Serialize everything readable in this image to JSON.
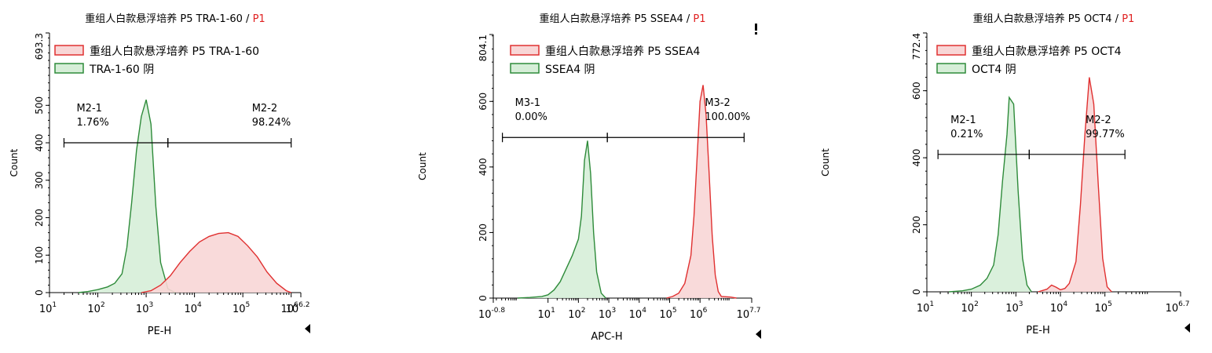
{
  "colors": {
    "sample_line": "#e03030",
    "sample_fill": "#f8d6d6",
    "neg_line": "#2e8b3a",
    "neg_fill": "#d6eed8",
    "p1_text": "#e02020",
    "axis": "#000000"
  },
  "chart_data": [
    {
      "type": "area",
      "title": "重组人白款悬浮培养 P5 TRA-1-60 / P1",
      "title_main": "重组人白款悬浮培养 P5 TRA-1-60 /",
      "title_gate": "P1",
      "xlabel": "PE-H",
      "ylabel": "Count",
      "xscale": "log",
      "xlim": [
        1,
        6.2
      ],
      "ylim": [
        0,
        693.3
      ],
      "xticks": [
        {
          "v": 1,
          "label": "10"
        },
        {
          "v": 2,
          "label": "10"
        },
        {
          "v": 3,
          "label": "10"
        },
        {
          "v": 4,
          "label": "10"
        },
        {
          "v": 5,
          "label": "10"
        },
        {
          "v": 6,
          "label": "10"
        }
      ],
      "xtick_exps": [
        "1",
        "2",
        "3",
        "4",
        "5",
        "6",
        "6.2"
      ],
      "xmax_label": "10",
      "yticks": [
        0,
        100,
        200,
        300,
        400,
        500
      ],
      "ymax_label": "693.3",
      "legend": [
        "重组人白款悬浮培养 P5  TRA-1-60",
        "TRA-1-60 阴"
      ],
      "legend_placement": "top",
      "gates": [
        {
          "name": "M2-1",
          "pct": "1.76%",
          "x_start": 1.3,
          "x_end": 3.45,
          "y": 400
        },
        {
          "name": "M2-2",
          "pct": "98.24%",
          "x_start": 3.45,
          "x_end": 6.0,
          "y": 400
        }
      ],
      "series": [
        {
          "name": "重组人白款悬浮培养 P5  TRA-1-60",
          "role": "sample",
          "x": [
            2.9,
            3.1,
            3.3,
            3.5,
            3.7,
            3.9,
            4.1,
            4.3,
            4.5,
            4.7,
            4.9,
            5.1,
            5.3,
            5.5,
            5.7,
            5.9,
            6.0
          ],
          "y": [
            0,
            5,
            20,
            45,
            80,
            110,
            135,
            150,
            158,
            160,
            150,
            125,
            95,
            55,
            25,
            5,
            0
          ]
        },
        {
          "name": "TRA-1-60 阴",
          "role": "negative",
          "x": [
            1.6,
            1.8,
            2.0,
            2.2,
            2.35,
            2.5,
            2.6,
            2.7,
            2.8,
            2.9,
            3.0,
            3.1,
            3.2,
            3.3,
            3.45,
            3.6
          ],
          "y": [
            0,
            3,
            8,
            15,
            25,
            50,
            120,
            240,
            380,
            470,
            515,
            450,
            230,
            80,
            10,
            0
          ]
        }
      ]
    },
    {
      "type": "area",
      "title": "重组人白款悬浮培养 P5 SSEA4 / P1",
      "title_main": "重组人白款悬浮培养 P5 SSEA4 /",
      "title_gate": "P1",
      "xlabel": "APC-H",
      "ylabel": "Count",
      "xscale": "log",
      "xlim": [
        -0.8,
        7.7
      ],
      "ylim": [
        0,
        804.1
      ],
      "xticks": [
        {
          "v": -0.8,
          "label": "10"
        },
        {
          "v": 1,
          "label": "10"
        },
        {
          "v": 2,
          "label": "10"
        },
        {
          "v": 3,
          "label": "10"
        },
        {
          "v": 4,
          "label": "10"
        },
        {
          "v": 5,
          "label": "10"
        },
        {
          "v": 6,
          "label": "10"
        }
      ],
      "xtick_exps": [
        "-0.8",
        "1",
        "2",
        "3",
        "4",
        "5",
        "6",
        "7.7"
      ],
      "xmax_label": "10",
      "yticks": [
        0,
        200,
        400,
        600
      ],
      "ymax_label": "804.1",
      "legend": [
        "重组人白款悬浮培养 P5  SSEA4",
        "SSEA4 阴"
      ],
      "legend_placement": "top",
      "gates": [
        {
          "name": "M3-1",
          "pct": "0.00%",
          "x_start": -0.5,
          "x_end": 2.95,
          "y": 490
        },
        {
          "name": "M3-2",
          "pct": "100.00%",
          "x_start": 2.95,
          "x_end": 7.45,
          "y": 490
        }
      ],
      "series": [
        {
          "name": "重组人白款悬浮培养 P5  SSEA4",
          "role": "sample",
          "x": [
            4.9,
            5.1,
            5.3,
            5.5,
            5.7,
            5.8,
            5.9,
            6.0,
            6.1,
            6.2,
            6.3,
            6.4,
            6.5,
            6.6,
            6.7,
            7.0,
            7.2
          ],
          "y": [
            0,
            5,
            15,
            45,
            130,
            250,
            420,
            600,
            650,
            560,
            380,
            190,
            70,
            20,
            5,
            3,
            0
          ]
        },
        {
          "name": "SSEA4 阴",
          "role": "negative",
          "x": [
            0.0,
            0.4,
            0.8,
            1.0,
            1.2,
            1.4,
            1.6,
            1.8,
            2.0,
            2.1,
            2.2,
            2.3,
            2.4,
            2.5,
            2.6,
            2.75,
            2.9
          ],
          "y": [
            0,
            2,
            5,
            10,
            25,
            50,
            90,
            130,
            180,
            250,
            420,
            480,
            380,
            200,
            80,
            15,
            0
          ]
        }
      ]
    },
    {
      "type": "area",
      "title": "重组人白款悬浮培养 P5 OCT4 / P1",
      "title_main": "重组人白款悬浮培养 P5 OCT4 /",
      "title_gate": "P1",
      "xlabel": "PE-H",
      "ylabel": "Count",
      "xscale": "log",
      "xlim": [
        1,
        6.7
      ],
      "ylim": [
        0,
        772.4
      ],
      "xticks": [
        {
          "v": 1,
          "label": "10"
        },
        {
          "v": 2,
          "label": "10"
        },
        {
          "v": 3,
          "label": "10"
        },
        {
          "v": 4,
          "label": "10"
        },
        {
          "v": 5,
          "label": "10"
        }
      ],
      "xtick_exps": [
        "1",
        "2",
        "3",
        "4",
        "5",
        "6.7"
      ],
      "xmax_label": "10",
      "yticks": [
        0,
        200,
        400,
        600
      ],
      "ymax_label": "772.4",
      "legend": [
        "重组人白款悬浮培养 P5  OCT4",
        "OCT4 阴"
      ],
      "legend_placement": "top",
      "gates": [
        {
          "name": "M2-1",
          "pct": "0.21%",
          "x_start": 1.25,
          "x_end": 3.3,
          "y": 410
        },
        {
          "name": "M2-2",
          "pct": "99.77%",
          "x_start": 3.3,
          "x_end": 5.45,
          "y": 410
        }
      ],
      "series": [
        {
          "name": "重组人白款悬浮培养 P5  OCT4",
          "role": "sample",
          "x": [
            3.5,
            3.7,
            3.8,
            3.9,
            4.0,
            4.1,
            4.2,
            4.35,
            4.45,
            4.55,
            4.65,
            4.75,
            4.85,
            4.95,
            5.05,
            5.15
          ],
          "y": [
            0,
            8,
            20,
            14,
            6,
            10,
            25,
            90,
            260,
            470,
            640,
            560,
            320,
            100,
            15,
            0
          ]
        },
        {
          "name": "OCT4 阴",
          "role": "negative",
          "x": [
            1.5,
            1.8,
            2.0,
            2.2,
            2.35,
            2.5,
            2.6,
            2.7,
            2.8,
            2.85,
            2.9,
            2.95,
            3.05,
            3.15,
            3.25,
            3.35
          ],
          "y": [
            0,
            3,
            8,
            20,
            40,
            80,
            170,
            330,
            470,
            580,
            570,
            560,
            300,
            100,
            20,
            0
          ]
        }
      ]
    }
  ]
}
